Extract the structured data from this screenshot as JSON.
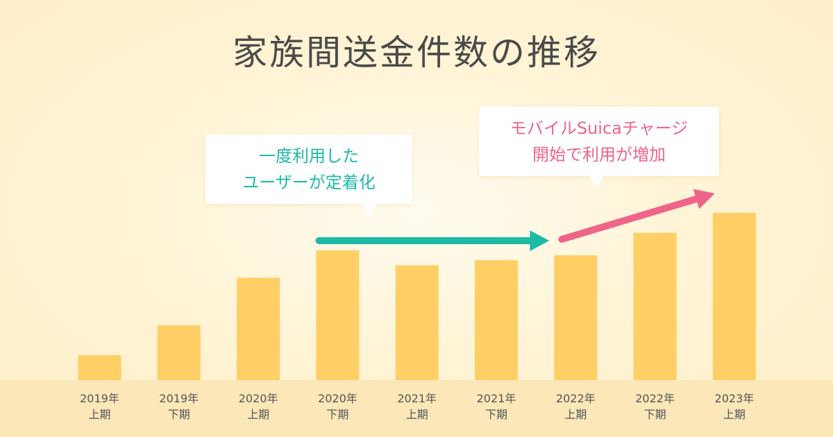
{
  "chart_data": {
    "type": "bar",
    "title": "家族間送金件数の推移",
    "categories": [
      [
        "2019年",
        "上期"
      ],
      [
        "2019年",
        "下期"
      ],
      [
        "2020年",
        "上期"
      ],
      [
        "2020年",
        "下期"
      ],
      [
        "2021年",
        "上期"
      ],
      [
        "2021年",
        "下期"
      ],
      [
        "2022年",
        "上期"
      ],
      [
        "2022年",
        "下期"
      ],
      [
        "2023年",
        "上期"
      ]
    ],
    "values": [
      10,
      22,
      41,
      52,
      46,
      48,
      50,
      59,
      67
    ],
    "ylim": [
      0,
      70
    ],
    "grid": false,
    "legend": "none",
    "bar_color": "#ffcf66",
    "annotations": [
      {
        "lines": [
          "一度利用した",
          "ユーザーが定着化"
        ],
        "color": "#1dbaa6",
        "arrow": {
          "from_category": 3,
          "to_category": 6,
          "color": "#1dbaa6",
          "style": "flat"
        }
      },
      {
        "lines": [
          "モバイルSuicaチャージ",
          "開始で利用が増加"
        ],
        "color": "#f0648a",
        "arrow": {
          "from_category": 6,
          "to_category": 8,
          "color": "#f0648a",
          "style": "rising"
        }
      }
    ]
  },
  "colors": {
    "title": "#4a4a4a",
    "tick_label": "#555555"
  }
}
